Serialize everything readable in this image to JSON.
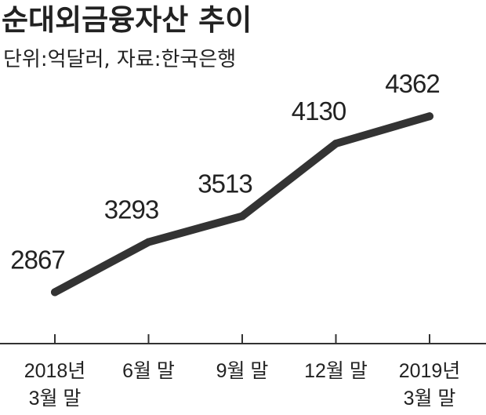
{
  "chart_data": {
    "type": "line",
    "title": "순대외금융자산 추이",
    "subtitle": "단위:억달러, 자료:한국은행",
    "categories": [
      [
        "2018년",
        "3월 말"
      ],
      [
        "6월 말"
      ],
      [
        "9월 말"
      ],
      [
        "12월 말"
      ],
      [
        "2019년",
        "3월 말"
      ]
    ],
    "values": [
      2867,
      3293,
      3513,
      4130,
      4362
    ],
    "data_labels": [
      "2867",
      "3293",
      "3513",
      "4130",
      "4362"
    ],
    "ylim": [
      2550,
      4550
    ],
    "grid": false,
    "legend": "none",
    "colors": {
      "line": "#333333",
      "axis": "#333333",
      "text": "#222222"
    }
  }
}
